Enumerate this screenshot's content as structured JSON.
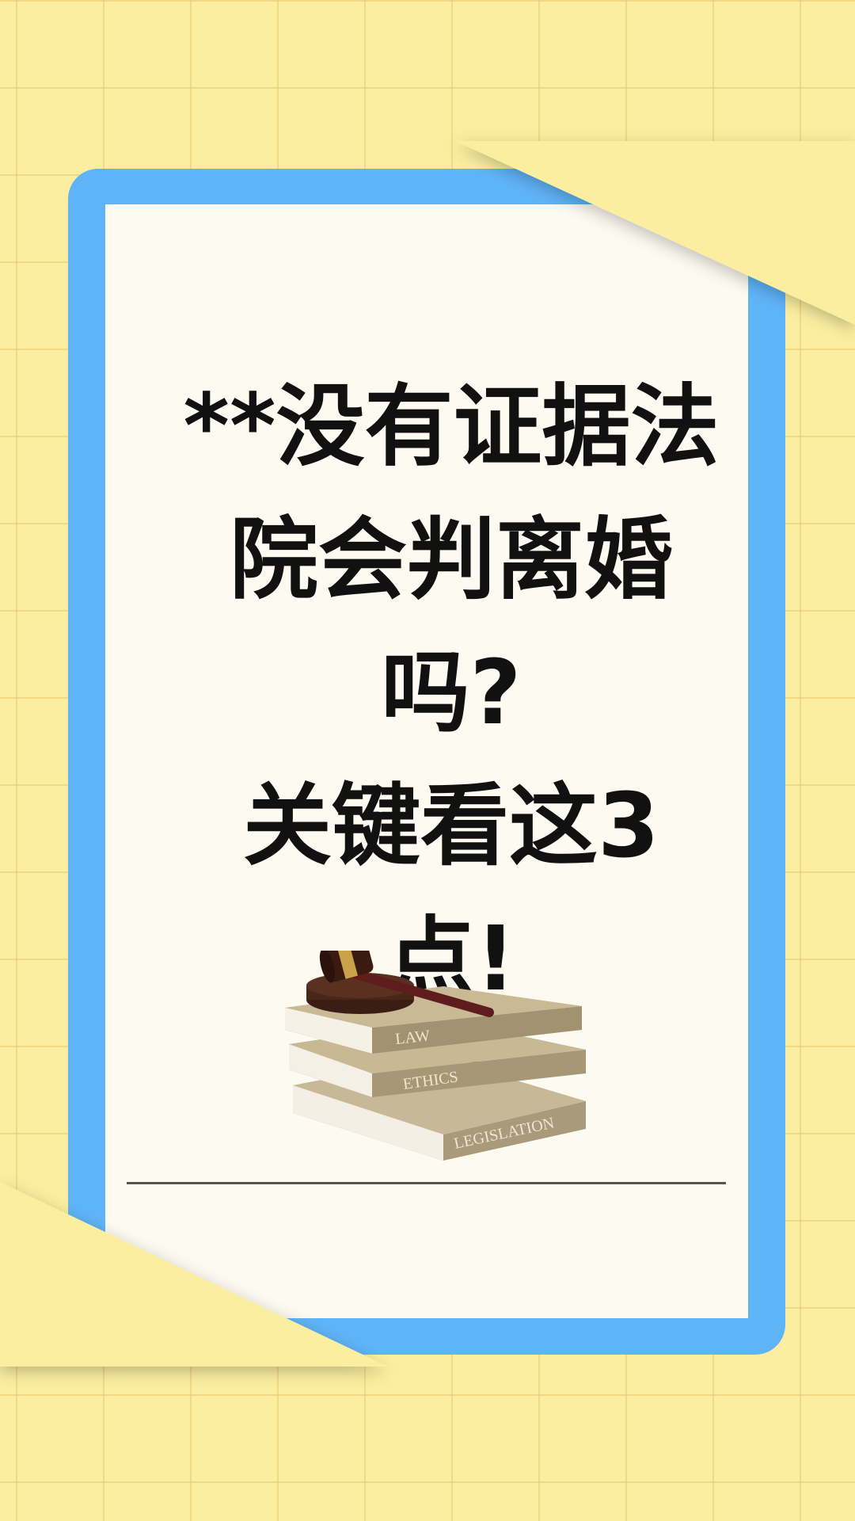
{
  "title_lines": [
    "**没有证据法",
    "院会判离婚",
    "吗?",
    "关键看这3",
    "点!",
    "**"
  ],
  "book_spines": [
    "LAW",
    "ETHICS",
    "LEGISLATION"
  ],
  "colors": {
    "background": "#FCEEA0",
    "frame": "#5FB4F8",
    "paper": "#FDFAF1",
    "text": "#111111"
  }
}
